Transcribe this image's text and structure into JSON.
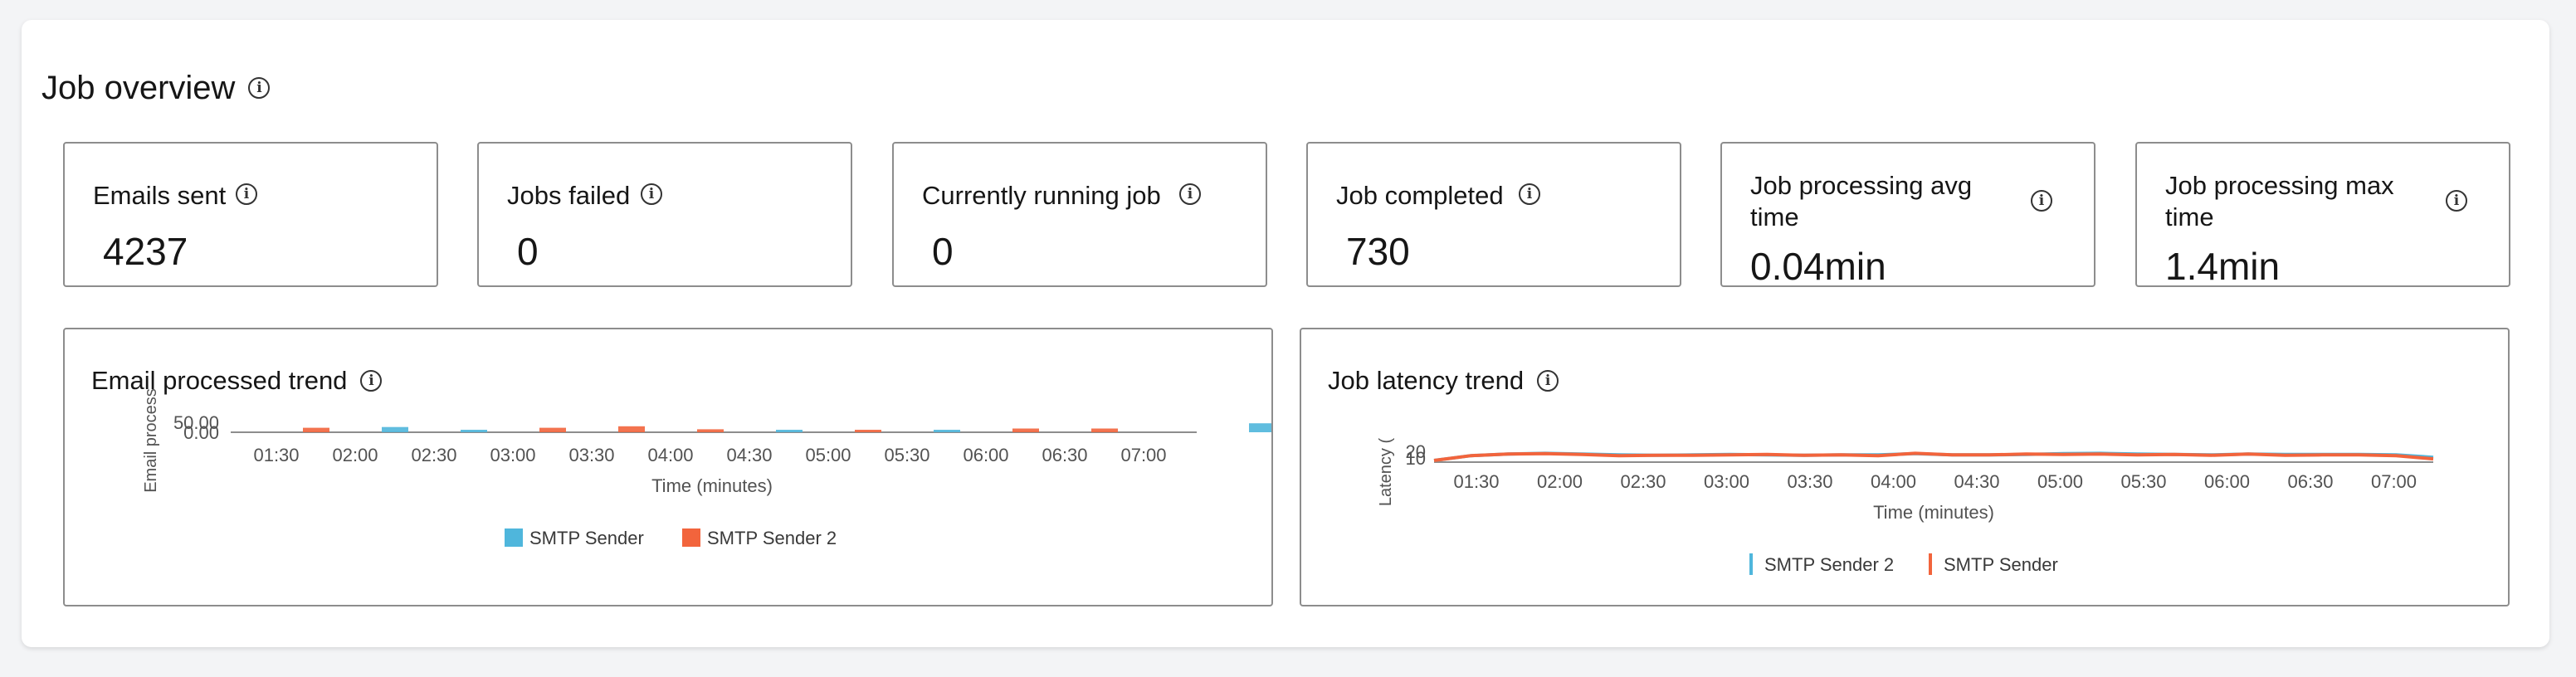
{
  "page": {
    "title": "Job overview"
  },
  "metrics": [
    {
      "label": "Emails sent",
      "value": "4237"
    },
    {
      "label": "Jobs failed",
      "value": "0"
    },
    {
      "label": "Currently running job",
      "value": "0"
    },
    {
      "label": "Job completed",
      "value": "730"
    },
    {
      "label": "Job processing avg time",
      "value": "0.04min"
    },
    {
      "label": "Job processing max time",
      "value": "1.4min"
    }
  ],
  "charts": {
    "email": {
      "title": "Email processed trend"
    },
    "latency": {
      "title": "Job latency trend"
    }
  },
  "colors": {
    "blue": "#4fb6dc",
    "orange": "#f2643c",
    "axis": "#525252",
    "border": "#8d8d8d"
  },
  "chart_data": [
    {
      "type": "bar",
      "title": "Email processed trend",
      "xlabel": "Time (minutes)",
      "ylabel": "Email process",
      "yticks": [
        "0.00",
        "50.00"
      ],
      "ylim": [
        0,
        50
      ],
      "xticks": [
        "01:30",
        "02:00",
        "02:30",
        "03:00",
        "03:30",
        "04:00",
        "04:30",
        "05:00",
        "05:30",
        "06:00",
        "06:30",
        "07:00"
      ],
      "legend_position": "bottom",
      "series": [
        {
          "name": "SMTP Sender",
          "color": "#4fb6dc",
          "values": [
            0,
            0,
            7,
            3,
            0,
            0,
            0,
            3,
            0,
            3,
            0,
            0,
            0,
            12
          ]
        },
        {
          "name": "SMTP Sender 2",
          "color": "#f2643c",
          "values": [
            0,
            6,
            0,
            0,
            6,
            8,
            4,
            0,
            3,
            0,
            5,
            5,
            0,
            0
          ]
        }
      ],
      "bar_slots": [
        "01:15",
        "01:45",
        "02:15",
        "02:45",
        "03:15",
        "03:45",
        "04:15",
        "04:45",
        "05:15",
        "05:45",
        "06:15",
        "06:45",
        "07:15",
        "07:45"
      ]
    },
    {
      "type": "line",
      "title": "Job latency trend",
      "xlabel": "Time (minutes)",
      "ylabel": "Latency (",
      "yticks": [
        "10",
        "20"
      ],
      "ylim": [
        0,
        25
      ],
      "xticks": [
        "01:30",
        "02:00",
        "02:30",
        "03:00",
        "03:30",
        "04:00",
        "04:30",
        "05:00",
        "05:30",
        "06:00",
        "06:30",
        "07:00"
      ],
      "legend_position": "bottom",
      "series": [
        {
          "name": "SMTP Sender 2",
          "color": "#4fb6dc",
          "values": [
            0,
            12,
            16,
            18,
            16,
            14,
            13,
            14,
            15,
            14,
            13,
            14,
            14,
            17,
            14,
            14,
            15,
            17,
            18,
            16,
            15,
            14,
            16,
            15,
            15,
            15,
            14,
            8
          ]
        },
        {
          "name": "SMTP Sender",
          "color": "#f2643c",
          "values": [
            0,
            12,
            16,
            17,
            15,
            12,
            13,
            13,
            14,
            15,
            13,
            14,
            12,
            18,
            14,
            14,
            16,
            15,
            16,
            14,
            15,
            13,
            16,
            13,
            14,
            14,
            12,
            4
          ]
        }
      ]
    }
  ]
}
